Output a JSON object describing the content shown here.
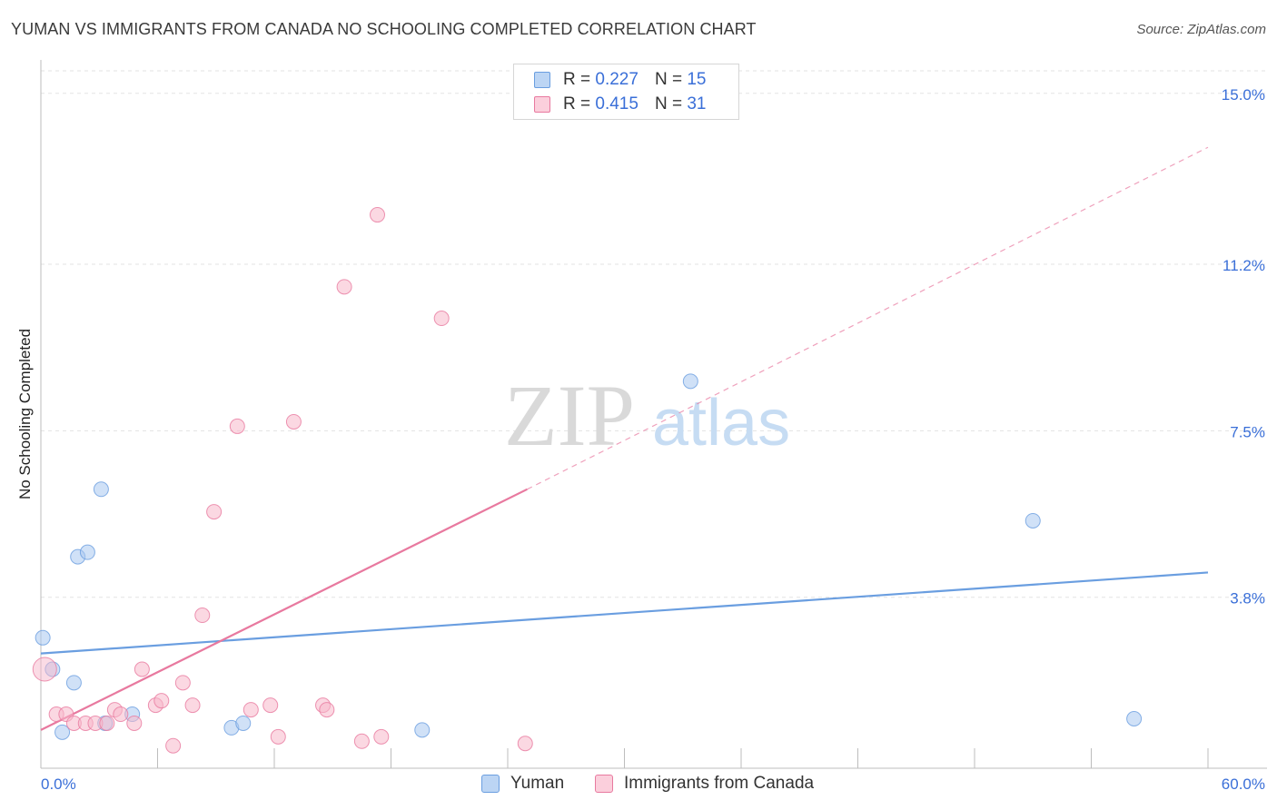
{
  "header": {
    "title": "YUMAN VS IMMIGRANTS FROM CANADA NO SCHOOLING COMPLETED CORRELATION CHART",
    "source": "Source: ZipAtlas.com"
  },
  "legend_top": {
    "rows": [
      {
        "r_label": "R =",
        "r_value": "0.227",
        "n_label": "N =",
        "n_value": "15",
        "color": "#a9c8f0"
      },
      {
        "r_label": "R =",
        "r_value": "0.415",
        "n_label": "N =",
        "n_value": "31",
        "color": "#f7b8cb"
      }
    ]
  },
  "legend_bottom": {
    "items": [
      {
        "label": "Yuman",
        "color": "#a9c8f0"
      },
      {
        "label": "Immigrants from Canada",
        "color": "#f7b8cb"
      }
    ]
  },
  "watermark": {
    "zip": "ZIP",
    "atlas": "atlas"
  },
  "chart_data": {
    "type": "scatter",
    "title": "YUMAN VS IMMIGRANTS FROM CANADA NO SCHOOLING COMPLETED CORRELATION CHART",
    "xlabel": "",
    "ylabel": "No Schooling Completed",
    "xlim": [
      0,
      60
    ],
    "ylim": [
      0,
      15.5
    ],
    "x_tick_labels": [
      "0.0%",
      "60.0%"
    ],
    "y_ticks": [
      3.8,
      7.5,
      11.2,
      15.0
    ],
    "y_tick_labels": [
      "3.8%",
      "7.5%",
      "11.2%",
      "15.0%"
    ],
    "grid": true,
    "legend_position": "top-center",
    "series": [
      {
        "name": "Yuman",
        "color": "#6a9ee0",
        "fill": "#a9c8f0",
        "points": [
          {
            "x": 0.1,
            "y": 2.9
          },
          {
            "x": 0.6,
            "y": 2.2
          },
          {
            "x": 1.1,
            "y": 0.8
          },
          {
            "x": 1.7,
            "y": 1.9
          },
          {
            "x": 1.9,
            "y": 4.7
          },
          {
            "x": 2.4,
            "y": 4.8
          },
          {
            "x": 3.1,
            "y": 6.2
          },
          {
            "x": 3.3,
            "y": 1.0
          },
          {
            "x": 4.7,
            "y": 1.2
          },
          {
            "x": 9.8,
            "y": 0.9
          },
          {
            "x": 10.4,
            "y": 1.0
          },
          {
            "x": 19.6,
            "y": 0.85
          },
          {
            "x": 33.4,
            "y": 8.6
          },
          {
            "x": 51.0,
            "y": 5.5
          },
          {
            "x": 56.2,
            "y": 1.1
          }
        ],
        "trend": {
          "x0": 0,
          "y0": 2.55,
          "x1": 60,
          "y1": 4.35
        }
      },
      {
        "name": "Immigrants from Canada",
        "color": "#e8799f",
        "fill": "#f7b8cb",
        "points": [
          {
            "x": 0.2,
            "y": 2.2
          },
          {
            "x": 0.8,
            "y": 1.2
          },
          {
            "x": 1.3,
            "y": 1.2
          },
          {
            "x": 1.7,
            "y": 1.0
          },
          {
            "x": 2.3,
            "y": 1.0
          },
          {
            "x": 2.8,
            "y": 1.0
          },
          {
            "x": 3.4,
            "y": 1.0
          },
          {
            "x": 3.8,
            "y": 1.3
          },
          {
            "x": 4.1,
            "y": 1.2
          },
          {
            "x": 4.8,
            "y": 1.0
          },
          {
            "x": 5.2,
            "y": 2.2
          },
          {
            "x": 5.9,
            "y": 1.4
          },
          {
            "x": 6.2,
            "y": 1.5
          },
          {
            "x": 6.8,
            "y": 0.5
          },
          {
            "x": 7.3,
            "y": 1.9
          },
          {
            "x": 7.8,
            "y": 1.4
          },
          {
            "x": 8.3,
            "y": 3.4
          },
          {
            "x": 8.9,
            "y": 5.7
          },
          {
            "x": 10.1,
            "y": 7.6
          },
          {
            "x": 10.8,
            "y": 1.3
          },
          {
            "x": 11.8,
            "y": 1.4
          },
          {
            "x": 12.2,
            "y": 0.7
          },
          {
            "x": 13.0,
            "y": 7.7
          },
          {
            "x": 14.5,
            "y": 1.4
          },
          {
            "x": 14.7,
            "y": 1.3
          },
          {
            "x": 15.6,
            "y": 10.7
          },
          {
            "x": 16.5,
            "y": 0.6
          },
          {
            "x": 17.3,
            "y": 12.3
          },
          {
            "x": 17.5,
            "y": 0.7
          },
          {
            "x": 20.6,
            "y": 10.0
          },
          {
            "x": 24.9,
            "y": 0.55
          }
        ],
        "trend": {
          "x0": 0,
          "y0": 0.85,
          "x1": 25,
          "y1": 6.2
        },
        "trend_extension": {
          "x0": 25,
          "y0": 6.2,
          "x1": 60,
          "y1": 13.8
        }
      }
    ]
  }
}
